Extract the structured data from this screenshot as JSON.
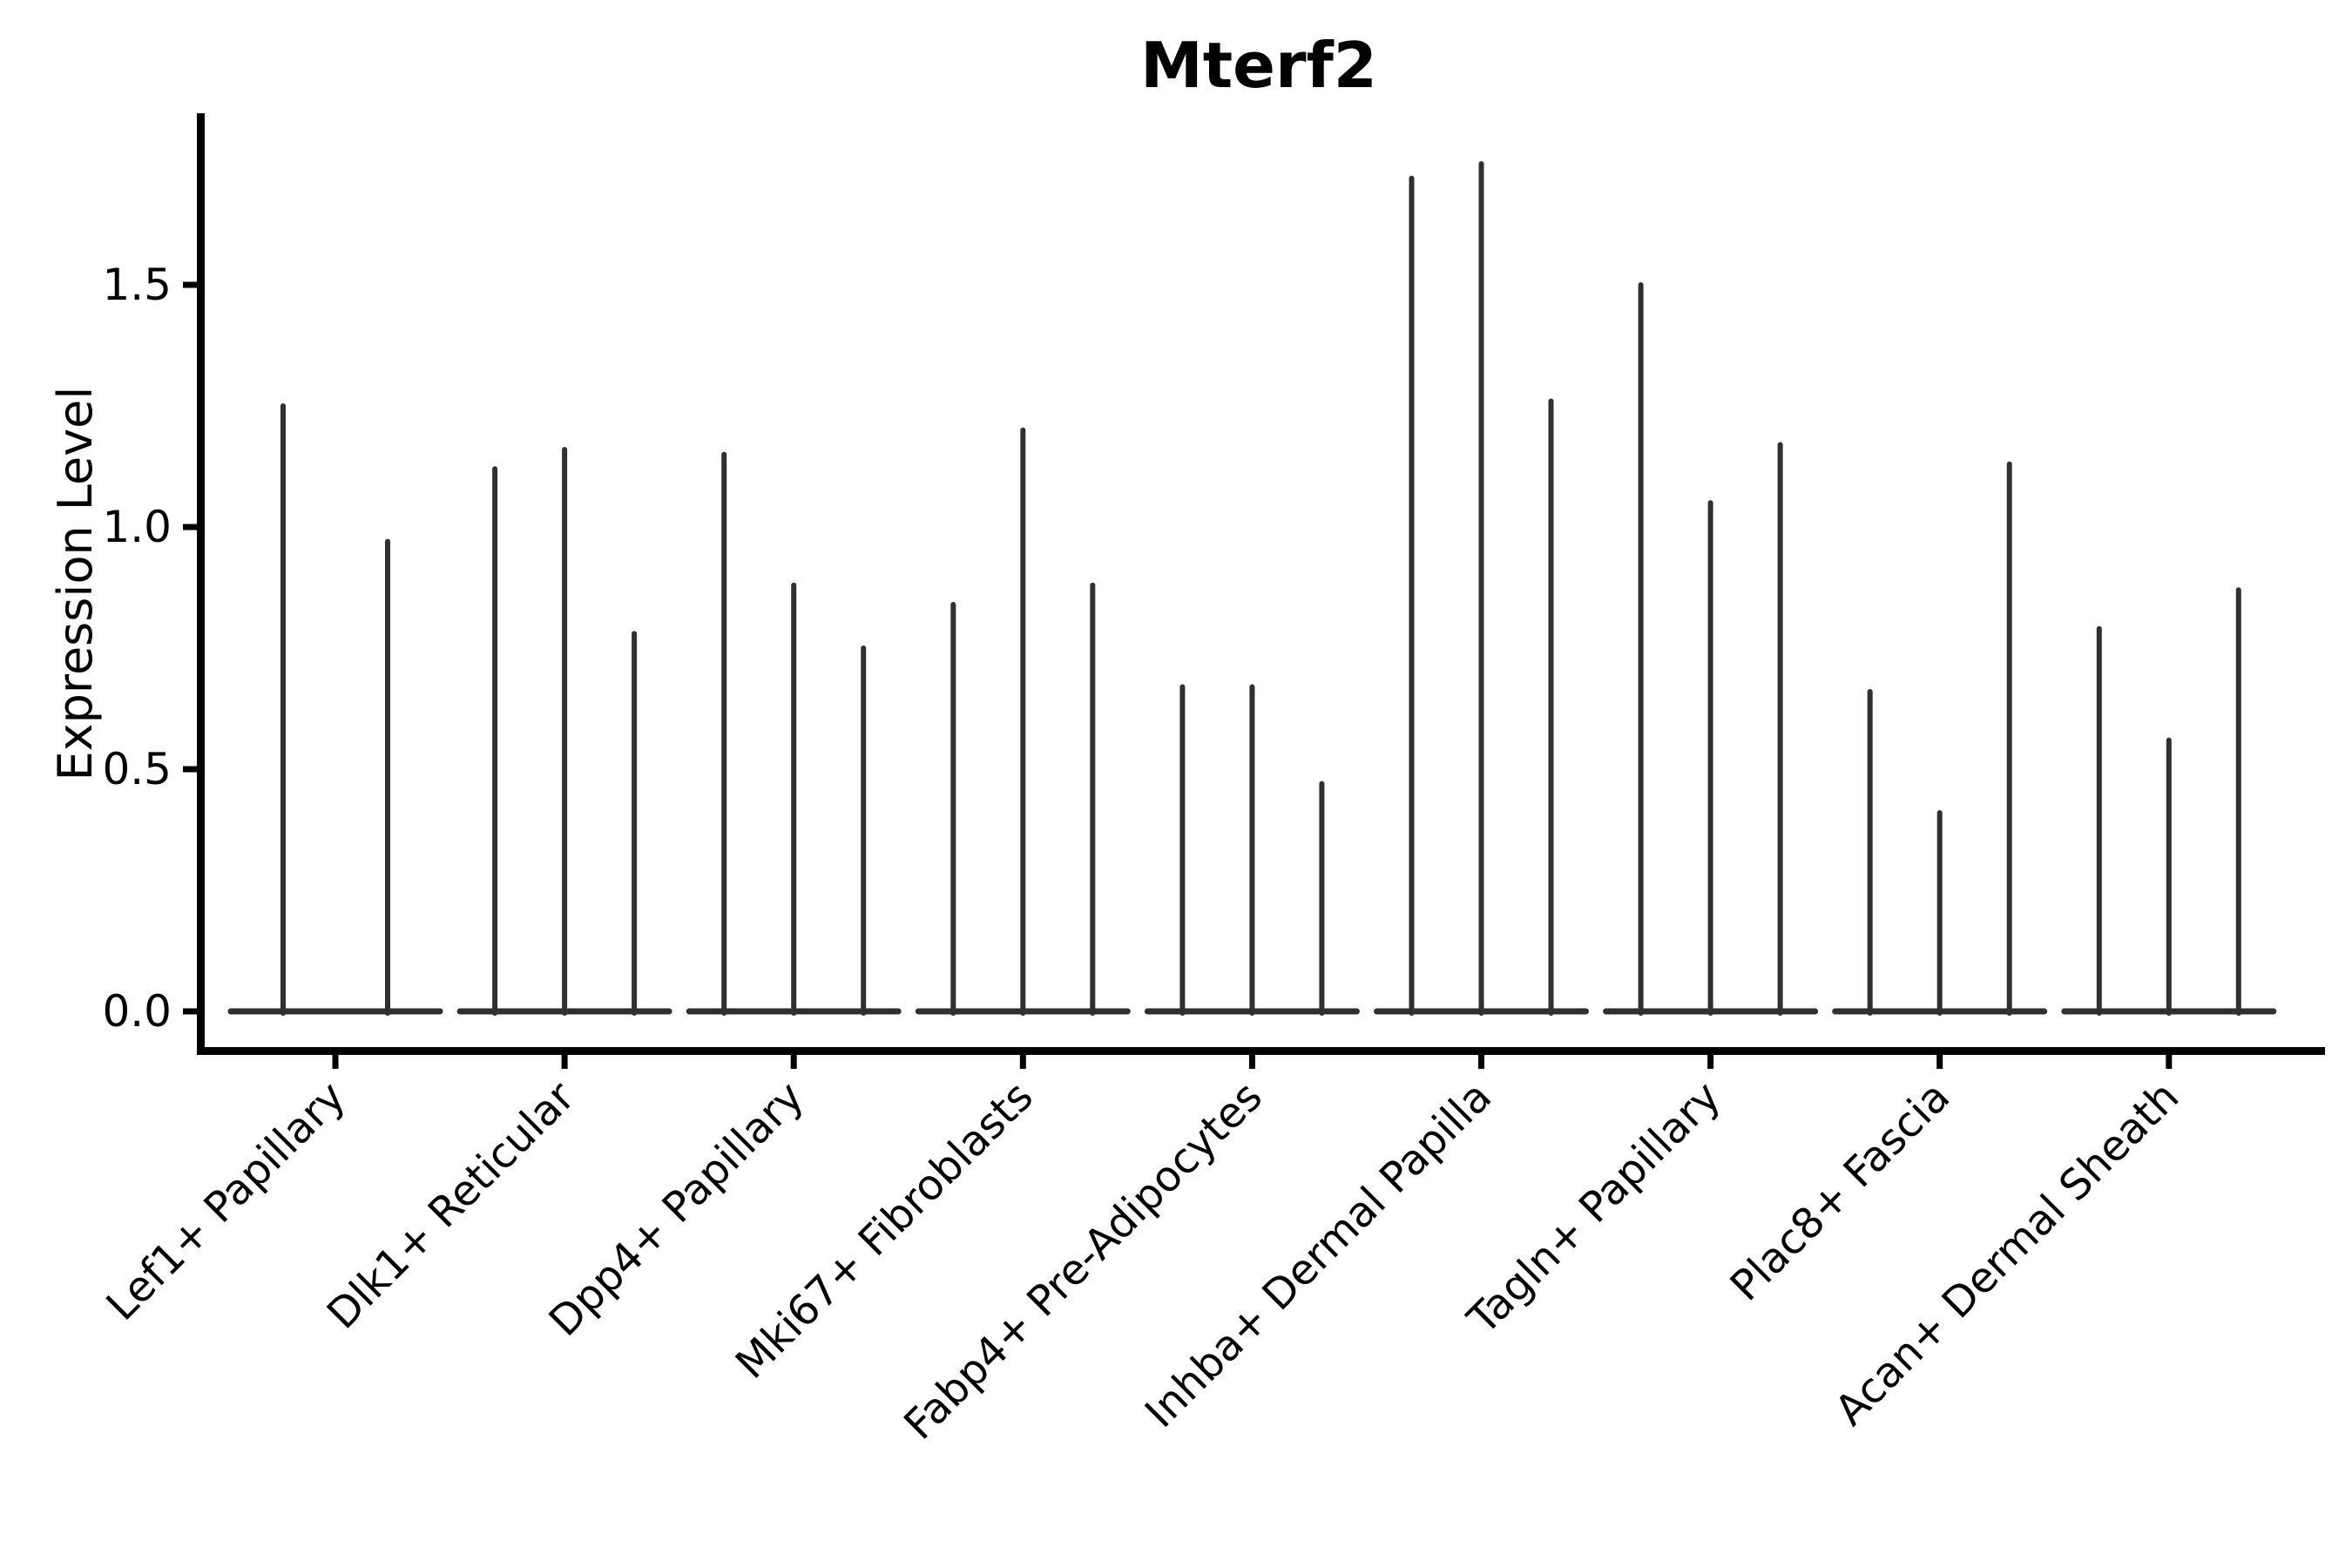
{
  "figure": {
    "background_color": "#ffffff"
  },
  "chart_data": {
    "type": "violin",
    "title": "Mterf2",
    "ylabel": "Expression Level",
    "xlabel": "",
    "grid": false,
    "legend_position": "none",
    "ylim": [
      -0.08,
      1.85
    ],
    "yticks": [
      0.0,
      0.5,
      1.0,
      1.5
    ],
    "ytick_labels": [
      "0.0",
      "0.5",
      "1.0",
      "1.5"
    ],
    "violin_color": "#303030",
    "axis_color": "#000000",
    "text_color": "#000000",
    "categories": [
      "Lef1+ Papillary",
      "Dlk1+ Reticular",
      "Dpp4+ Papillary",
      "Mki67+ Fibroblasts",
      "Fabp4+ Pre-Adipocytes",
      "Inhba+ Dermal Papilla",
      "Tagln+ Papillary",
      "Plac8+ Fascia",
      "Acan+ Dermal Sheath"
    ],
    "groups": [
      {
        "category": "Lef1+ Papillary",
        "peaks": [
          1.25,
          0.97
        ]
      },
      {
        "category": "Dlk1+ Reticular",
        "peaks": [
          1.12,
          1.16,
          0.78
        ]
      },
      {
        "category": "Dpp4+ Papillary",
        "peaks": [
          1.15,
          0.88,
          0.75
        ]
      },
      {
        "category": "Mki67+ Fibroblasts",
        "peaks": [
          0.84,
          1.2,
          0.88
        ]
      },
      {
        "category": "Fabp4+ Pre-Adipocytes",
        "peaks": [
          0.67,
          0.67,
          0.47
        ]
      },
      {
        "category": "Inhba+ Dermal Papilla",
        "peaks": [
          1.72,
          1.75,
          1.26
        ]
      },
      {
        "category": "Tagln+ Papillary",
        "peaks": [
          1.5,
          1.05,
          1.17
        ]
      },
      {
        "category": "Plac8+ Fascia",
        "peaks": [
          0.66,
          0.41,
          1.13
        ]
      },
      {
        "category": "Acan+ Dermal Sheath",
        "peaks": [
          0.79,
          0.56,
          0.87
        ]
      }
    ]
  }
}
